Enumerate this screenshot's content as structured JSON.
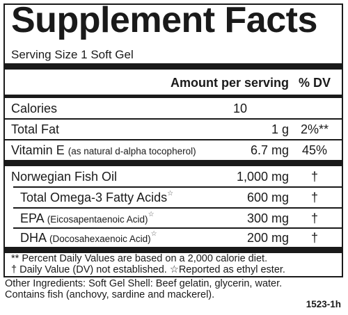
{
  "label": {
    "title": "Supplement Facts",
    "serving_size": "Serving Size 1 Soft Gel",
    "header": {
      "amount": "Amount per serving",
      "dv": "% DV"
    },
    "rows": [
      {
        "name": "Calories",
        "amount": "10",
        "dv": ""
      },
      {
        "name": "Total Fat",
        "amount": "1 g",
        "dv": "2%**"
      },
      {
        "name": "Vitamin E",
        "sub": "(as natural d-alpha tocopherol)",
        "amount": "6.7 mg",
        "dv": "45%"
      },
      {
        "name": "Norwegian Fish Oil",
        "amount": "1,000 mg",
        "dv": "†"
      },
      {
        "name": "Total Omega-3 Fatty Acids",
        "mark": "☆",
        "amount": "600 mg",
        "dv": "†"
      },
      {
        "name": "EPA",
        "sub": "(Eicosapentaenoic Acid)",
        "mark": "☆",
        "amount": "300 mg",
        "dv": "†"
      },
      {
        "name": "DHA",
        "sub": "(Docosahexaenoic Acid)",
        "mark": "☆",
        "amount": "200 mg",
        "dv": "†"
      }
    ],
    "footnotes": [
      "** Percent Daily Values are based on a 2,000 calorie diet.",
      "† Daily Value (DV) not established.  ☆Reported as ethyl ester."
    ]
  },
  "other_ingredients": [
    "Other Ingredients: Soft Gel Shell: Beef gelatin, glycerin, water.",
    "Contains fish (anchovy, sardine and mackerel)."
  ],
  "code": "1523-1h"
}
